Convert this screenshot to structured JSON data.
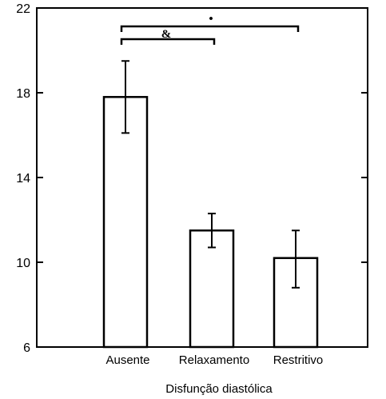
{
  "chart_data": {
    "type": "bar",
    "categories": [
      "Ausente",
      "Relaxamento",
      "Restritivo"
    ],
    "values": [
      17.8,
      11.5,
      10.2
    ],
    "error_upper": [
      19.5,
      12.3,
      11.5
    ],
    "error_lower": [
      16.1,
      10.7,
      8.8
    ],
    "xlabel": "Disfunção diastólica",
    "ylabel": "",
    "title": "",
    "ylim": [
      6,
      22
    ],
    "yticks": [
      6,
      10,
      14,
      18,
      22
    ],
    "grid": false,
    "bar_fill": "#ffffff",
    "bar_stroke": "#000000",
    "annotations": [
      {
        "text": "•",
        "from": "Relaxamento",
        "to": "Restritivo"
      },
      {
        "text": "&",
        "from": "Ausente",
        "to": "Relaxamento"
      }
    ],
    "brackets": [
      {
        "from": "Ausente",
        "to": "Restritivo"
      },
      {
        "from": "Ausente",
        "to": "Relaxamento"
      }
    ]
  }
}
